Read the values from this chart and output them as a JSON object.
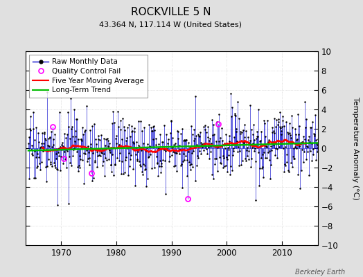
{
  "title": "ROCKVILLE 5 N",
  "subtitle": "43.364 N, 117.114 W (United States)",
  "credit": "Berkeley Earth",
  "ylabel": "Temperature Anomaly (°C)",
  "xlim": [
    1963.5,
    2016.5
  ],
  "ylim": [
    -10,
    10
  ],
  "yticks": [
    -10,
    -8,
    -6,
    -4,
    -2,
    0,
    2,
    4,
    6,
    8,
    10
  ],
  "xticks": [
    1970,
    1980,
    1990,
    2000,
    2010
  ],
  "bg_color": "#e0e0e0",
  "plot_bg_color": "#ffffff",
  "line_color": "#0000cc",
  "ma_color": "#ff0000",
  "trend_color": "#00bb00",
  "qc_color": "#ff00ff",
  "seed": 17,
  "n_months": 636,
  "start_year": 1964.042
}
